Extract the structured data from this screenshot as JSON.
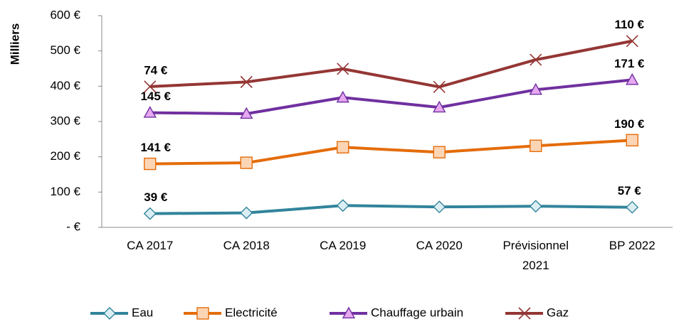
{
  "chart_data": {
    "type": "line",
    "stacked": true,
    "y_label": "Milliers",
    "categories": [
      "CA 2017",
      "CA 2018",
      "CA 2019",
      "CA 2020",
      "Prévisionnel 2021",
      "BP 2022"
    ],
    "ylim": [
      0,
      600
    ],
    "yticks": [
      {
        "value": 0,
        "label": "-  €"
      },
      {
        "value": 100,
        "label": "100 €"
      },
      {
        "value": 200,
        "label": "200 €"
      },
      {
        "value": 300,
        "label": "300 €"
      },
      {
        "value": 400,
        "label": "400 €"
      },
      {
        "value": 500,
        "label": "500 €"
      },
      {
        "value": 600,
        "label": "600 €"
      }
    ],
    "grid": false,
    "legend": "bottom",
    "series": [
      {
        "name": "Eau",
        "color": "#31849b",
        "marker": "diamond",
        "values": [
          39,
          41,
          62,
          58,
          60,
          57
        ],
        "value_labels": [
          "39 €",
          null,
          null,
          null,
          null,
          "57 €"
        ]
      },
      {
        "name": "Electricité",
        "color": "#e46c0a",
        "marker": "square",
        "values": [
          141,
          142,
          165,
          155,
          171,
          190
        ],
        "value_labels": [
          "141 €",
          null,
          null,
          null,
          null,
          "190 €"
        ]
      },
      {
        "name": "Chauffage urbain",
        "color": "#7030a0",
        "marker": "triangle",
        "values": [
          145,
          139,
          141,
          127,
          159,
          171
        ],
        "value_labels": [
          "145 €",
          null,
          null,
          null,
          null,
          "171 €"
        ]
      },
      {
        "name": "Gaz",
        "color": "#943634",
        "marker": "x",
        "values": [
          74,
          90,
          81,
          58,
          85,
          110
        ],
        "value_labels": [
          "74 €",
          null,
          null,
          null,
          null,
          "110 €"
        ]
      }
    ]
  }
}
